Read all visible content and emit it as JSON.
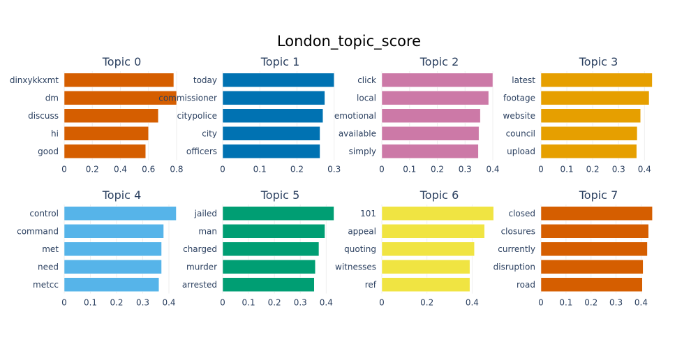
{
  "chart_data": {
    "type": "bar",
    "orientation": "horizontal",
    "title": "London_topic_score",
    "grid": true,
    "subplots": [
      {
        "title": "Topic 0",
        "color": "#d55e00",
        "categories": [
          "dinxykkxmt",
          "dm",
          "discuss",
          "hi",
          "good"
        ],
        "values": [
          0.78,
          0.8,
          0.67,
          0.6,
          0.58
        ],
        "xlim": [
          0,
          0.82
        ],
        "xticks": [
          0,
          0.2,
          0.4,
          0.6,
          0.8
        ],
        "xtick_labels": [
          "0",
          "0.2",
          "0.4",
          "0.6",
          "0.8"
        ]
      },
      {
        "title": "Topic 1",
        "color": "#0072b2",
        "categories": [
          "today",
          "commissioner",
          "citypolice",
          "city",
          "officers"
        ],
        "values": [
          0.3,
          0.275,
          0.27,
          0.262,
          0.262
        ],
        "xlim": [
          0,
          0.31
        ],
        "xticks": [
          0,
          0.1,
          0.2,
          0.3
        ],
        "xtick_labels": [
          "0",
          "0.1",
          "0.2",
          "0.3"
        ]
      },
      {
        "title": "Topic 2",
        "color": "#cc79a7",
        "categories": [
          "click",
          "local",
          "emotional",
          "available",
          "simply"
        ],
        "values": [
          0.4,
          0.385,
          0.355,
          0.35,
          0.348
        ],
        "xlim": [
          0,
          0.415
        ],
        "xticks": [
          0,
          0.1,
          0.2,
          0.3,
          0.4
        ],
        "xtick_labels": [
          "0",
          "0.1",
          "0.2",
          "0.3",
          "0.4"
        ]
      },
      {
        "title": "Topic 3",
        "color": "#e69f00",
        "categories": [
          "latest",
          "footage",
          "website",
          "council",
          "upload"
        ],
        "values": [
          0.43,
          0.418,
          0.385,
          0.372,
          0.37
        ],
        "xlim": [
          0,
          0.445
        ],
        "xticks": [
          0,
          0.1,
          0.2,
          0.3,
          0.4
        ],
        "xtick_labels": [
          "0",
          "0.1",
          "0.2",
          "0.3",
          "0.4"
        ]
      },
      {
        "title": "Topic 4",
        "color": "#56b4e9",
        "categories": [
          "control",
          "command",
          "met",
          "need",
          "metcc"
        ],
        "values": [
          0.428,
          0.38,
          0.372,
          0.372,
          0.362
        ],
        "xlim": [
          0,
          0.44
        ],
        "xticks": [
          0,
          0.1,
          0.2,
          0.3,
          0.4
        ],
        "xtick_labels": [
          "0",
          "0.1",
          "0.2",
          "0.3",
          "0.4"
        ]
      },
      {
        "title": "Topic 5",
        "color": "#009e73",
        "categories": [
          "jailed",
          "man",
          "charged",
          "murder",
          "arrested"
        ],
        "values": [
          0.43,
          0.395,
          0.372,
          0.358,
          0.354
        ],
        "xlim": [
          0,
          0.445
        ],
        "xticks": [
          0,
          0.1,
          0.2,
          0.3,
          0.4
        ],
        "xtick_labels": [
          "0",
          "0.1",
          "0.2",
          "0.3",
          "0.4"
        ]
      },
      {
        "title": "Topic 6",
        "color": "#f0e442",
        "categories": [
          "101",
          "appeal",
          "quoting",
          "witnesses",
          "ref"
        ],
        "values": [
          0.495,
          0.455,
          0.41,
          0.39,
          0.39
        ],
        "xlim": [
          0,
          0.51
        ],
        "xticks": [
          0,
          0.2,
          0.4
        ],
        "xtick_labels": [
          "0",
          "0.2",
          "0.4"
        ]
      },
      {
        "title": "Topic 7",
        "color": "#d55e00",
        "categories": [
          "closed",
          "closures",
          "currently",
          "disruption",
          "road"
        ],
        "values": [
          0.445,
          0.43,
          0.425,
          0.408,
          0.405
        ],
        "xlim": [
          0,
          0.46
        ],
        "xticks": [
          0,
          0.1,
          0.2,
          0.3,
          0.4
        ],
        "xtick_labels": [
          "0",
          "0.1",
          "0.2",
          "0.3",
          "0.4"
        ]
      }
    ]
  }
}
